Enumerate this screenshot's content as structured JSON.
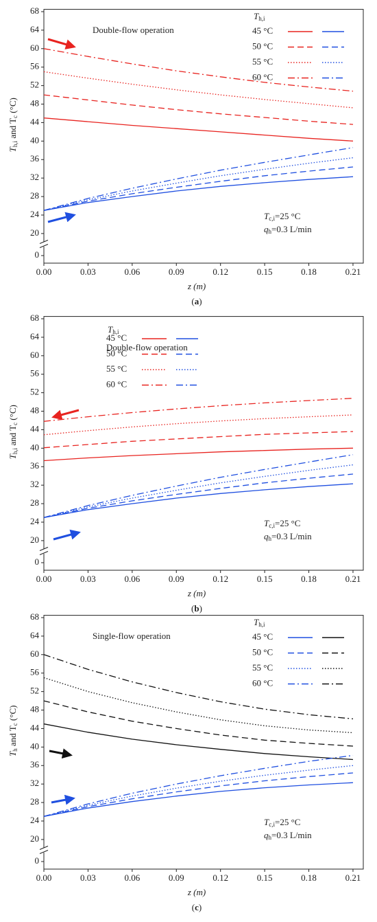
{
  "chart_data": [
    {
      "type": "line",
      "title": "Double-flow operation",
      "caption": [
        "(",
        "a",
        ")"
      ],
      "ylabel": [
        "T",
        "h,i",
        " and T",
        "c",
        " (°C)"
      ],
      "xlabel": "z (m)",
      "annotations": [
        [
          "T",
          "c,i",
          "=25 °C"
        ],
        [
          "q",
          "h",
          "=0.3 L/min"
        ]
      ],
      "legend_title": [
        "T",
        "h,i"
      ],
      "legend_loc": "upper right",
      "legend_order": [
        "hot",
        "cold"
      ],
      "x": [
        0,
        0.03,
        0.06,
        0.09,
        0.12,
        0.15,
        0.18,
        0.21
      ],
      "xlim": [
        0,
        0.217
      ],
      "xticks": [
        {
          "value": 0,
          "label": "0.00"
        },
        0.03,
        0.06,
        0.09,
        0.12,
        0.15,
        0.18,
        0.21
      ],
      "ylim": [
        -2,
        68.5
      ],
      "ybreak": [
        2,
        18.5
      ],
      "yticks": [
        0,
        20,
        24,
        28,
        32,
        36,
        40,
        44,
        48,
        52,
        56,
        60,
        64,
        68
      ],
      "series": [
        {
          "name": "45 °C",
          "dash": "solid",
          "hot": {
            "color": "#e8231f",
            "values": [
              45,
              44.2,
              43.4,
              42.7,
              42.0,
              41.3,
              40.6,
              40.0
            ]
          },
          "cold": {
            "color": "#1f4fe0",
            "values": [
              25,
              26.7,
              28.0,
              29.2,
              30.2,
              31.0,
              31.7,
              32.3
            ]
          }
        },
        {
          "name": "50 °C",
          "dash": "dashed",
          "hot": {
            "color": "#e8231f",
            "values": [
              50,
              48.9,
              47.8,
              46.8,
              45.9,
              45.1,
              44.3,
              43.6
            ]
          },
          "cold": {
            "color": "#1f4fe0",
            "values": [
              25,
              27.0,
              28.6,
              30.0,
              31.3,
              32.5,
              33.5,
              34.4
            ]
          }
        },
        {
          "name": "55 °C",
          "dash": "dotted",
          "hot": {
            "color": "#e8231f",
            "values": [
              55,
              53.6,
              52.3,
              51.1,
              50.0,
              49.0,
              48.1,
              47.2
            ]
          },
          "cold": {
            "color": "#1f4fe0",
            "values": [
              25,
              27.3,
              29.2,
              30.9,
              32.5,
              33.9,
              35.2,
              36.4
            ]
          }
        },
        {
          "name": "60 °C",
          "dash": "dashdot",
          "hot": {
            "color": "#e8231f",
            "values": [
              60,
              58.3,
              56.7,
              55.2,
              53.9,
              52.7,
              51.7,
              50.8
            ]
          },
          "cold": {
            "color": "#1f4fe0",
            "values": [
              25,
              27.6,
              29.8,
              31.8,
              33.7,
              35.4,
              37.0,
              38.6
            ]
          }
        }
      ]
    },
    {
      "type": "line",
      "title": "Double-flow operation",
      "caption": [
        "(",
        "b",
        ")"
      ],
      "ylabel": [
        "T",
        "h,i",
        " and T",
        "c",
        " (°C)"
      ],
      "xlabel": "z (m)",
      "annotations": [
        [
          "T",
          "c,i",
          "=25 °C"
        ],
        [
          "q",
          "h",
          "=0.3 L/min"
        ]
      ],
      "legend_title": [
        "T",
        "h,i"
      ],
      "legend_loc": "upper center",
      "legend_order": [
        "hot",
        "cold"
      ],
      "x": [
        0,
        0.03,
        0.06,
        0.09,
        0.12,
        0.15,
        0.18,
        0.21
      ],
      "xlim": [
        0,
        0.217
      ],
      "xticks": [
        {
          "value": 0,
          "label": "0.00"
        },
        0.03,
        0.06,
        0.09,
        0.12,
        0.15,
        0.18,
        0.21
      ],
      "ylim": [
        -2,
        68.5
      ],
      "ybreak": [
        2,
        18.5
      ],
      "yticks": [
        0,
        20,
        24,
        28,
        32,
        36,
        40,
        44,
        48,
        52,
        56,
        60,
        64,
        68
      ],
      "series": [
        {
          "name": "45 °C",
          "dash": "solid",
          "hot": {
            "color": "#e8231f",
            "values": [
              37.3,
              37.9,
              38.4,
              38.8,
              39.2,
              39.5,
              39.8,
              40.0
            ]
          },
          "cold": {
            "color": "#1f4fe0",
            "values": [
              25,
              26.7,
              28.0,
              29.2,
              30.2,
              31.0,
              31.7,
              32.3
            ]
          }
        },
        {
          "name": "50 °C",
          "dash": "dashed",
          "hot": {
            "color": "#e8231f",
            "values": [
              40.1,
              40.8,
              41.5,
              42.0,
              42.5,
              43.0,
              43.3,
              43.6
            ]
          },
          "cold": {
            "color": "#1f4fe0",
            "values": [
              25,
              27.0,
              28.6,
              30.0,
              31.3,
              32.5,
              33.5,
              34.4
            ]
          }
        },
        {
          "name": "55 °C",
          "dash": "dotted",
          "hot": {
            "color": "#e8231f",
            "values": [
              42.9,
              43.8,
              44.6,
              45.3,
              45.9,
              46.4,
              46.8,
              47.2
            ]
          },
          "cold": {
            "color": "#1f4fe0",
            "values": [
              25,
              27.3,
              29.2,
              30.9,
              32.5,
              33.9,
              35.2,
              36.4
            ]
          }
        },
        {
          "name": "60 °C",
          "dash": "dashdot",
          "hot": {
            "color": "#e8231f",
            "values": [
              45.8,
              46.8,
              47.7,
              48.5,
              49.2,
              49.8,
              50.3,
              50.8
            ]
          },
          "cold": {
            "color": "#1f4fe0",
            "values": [
              25,
              27.6,
              29.8,
              31.8,
              33.7,
              35.4,
              37.0,
              38.6
            ]
          }
        }
      ]
    },
    {
      "type": "line",
      "title": "Single-flow operation",
      "caption": [
        "(",
        "c",
        ")"
      ],
      "ylabel": [
        "T",
        "h",
        " and T",
        "c",
        " (°C)"
      ],
      "xlabel": "z (m)",
      "annotations": [
        [
          "T",
          "c,i",
          "=25 °C"
        ],
        [
          "q",
          "h",
          "=0.3 L/min"
        ]
      ],
      "legend_title": [
        "T",
        "h,i"
      ],
      "legend_loc": "upper right",
      "legend_order": [
        "cold",
        "hot"
      ],
      "x": [
        0,
        0.03,
        0.06,
        0.09,
        0.12,
        0.15,
        0.18,
        0.21
      ],
      "xlim": [
        0,
        0.217
      ],
      "xticks": [
        {
          "value": 0,
          "label": "0.00"
        },
        0.03,
        0.06,
        0.09,
        0.12,
        0.15,
        0.18,
        0.21
      ],
      "ylim": [
        -2,
        68.5
      ],
      "ybreak": [
        2,
        18.5
      ],
      "yticks": [
        0,
        20,
        24,
        28,
        32,
        36,
        40,
        44,
        48,
        52,
        56,
        60,
        64,
        68
      ],
      "series": [
        {
          "name": "45 °C",
          "dash": "solid",
          "hot": {
            "color": "#111111",
            "values": [
              45,
              43.2,
              41.7,
              40.5,
              39.5,
              38.6,
              37.9,
              37.3
            ]
          },
          "cold": {
            "color": "#1f4fe0",
            "values": [
              25,
              26.8,
              28.2,
              29.4,
              30.4,
              31.2,
              31.8,
              32.3
            ]
          }
        },
        {
          "name": "50 °C",
          "dash": "dashed",
          "hot": {
            "color": "#111111",
            "values": [
              50,
              47.6,
              45.6,
              44.0,
              42.6,
              41.5,
              40.8,
              40.2
            ]
          },
          "cold": {
            "color": "#1f4fe0",
            "values": [
              25,
              27.1,
              28.8,
              30.3,
              31.6,
              32.7,
              33.6,
              34.4
            ]
          }
        },
        {
          "name": "55 °C",
          "dash": "dotted",
          "hot": {
            "color": "#111111",
            "values": [
              55,
              52.0,
              49.6,
              47.6,
              45.9,
              44.6,
              43.7,
              43.1
            ]
          },
          "cold": {
            "color": "#1f4fe0",
            "values": [
              25,
              27.4,
              29.4,
              31.1,
              32.6,
              33.9,
              35.0,
              36.0
            ]
          }
        },
        {
          "name": "60 °C",
          "dash": "dashdot",
          "hot": {
            "color": "#111111",
            "values": [
              60,
              56.8,
              54.1,
              51.8,
              49.8,
              48.2,
              47.0,
              46.1
            ]
          },
          "cold": {
            "color": "#1f4fe0",
            "values": [
              25,
              27.7,
              30.0,
              32.0,
              33.8,
              35.4,
              36.9,
              38.2
            ]
          }
        }
      ]
    }
  ]
}
